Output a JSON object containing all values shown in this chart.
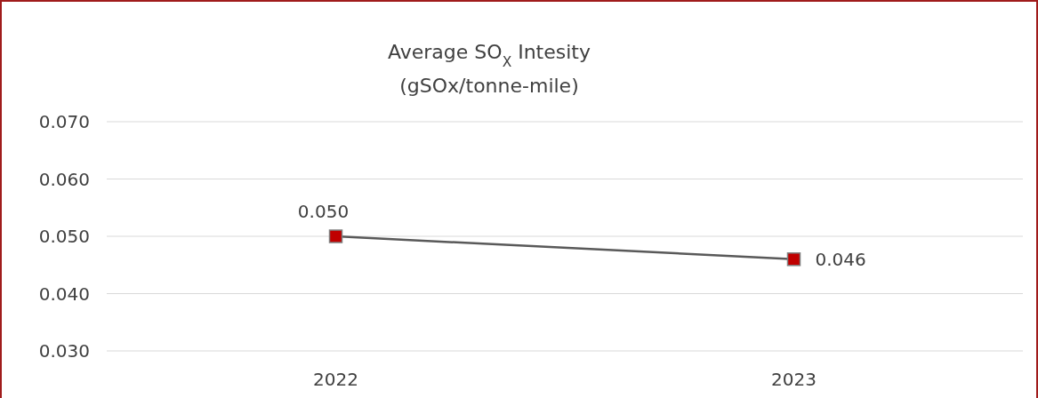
{
  "chart_data": {
    "type": "line",
    "title": "Average SO$_{X}$ Intesity",
    "subtitle": "(gSOx/tonne-mile)",
    "categories": [
      "2022",
      "2023"
    ],
    "series": [
      {
        "color": "#c00000",
        "values": [
          0.05,
          0.046
        ],
        "value_labels": [
          "0.050",
          "0.046"
        ]
      }
    ],
    "ylim": [
      0.03,
      0.07
    ],
    "yticks": [
      {
        "value": 0.03,
        "label": "0.030"
      },
      {
        "value": 0.04,
        "label": "0.040"
      },
      {
        "value": 0.05,
        "label": "0.050"
      },
      {
        "value": 0.06,
        "label": "0.060"
      },
      {
        "value": 0.07,
        "label": "0.070"
      }
    ],
    "grid": "y",
    "marker": "square",
    "line_style": "solid"
  }
}
